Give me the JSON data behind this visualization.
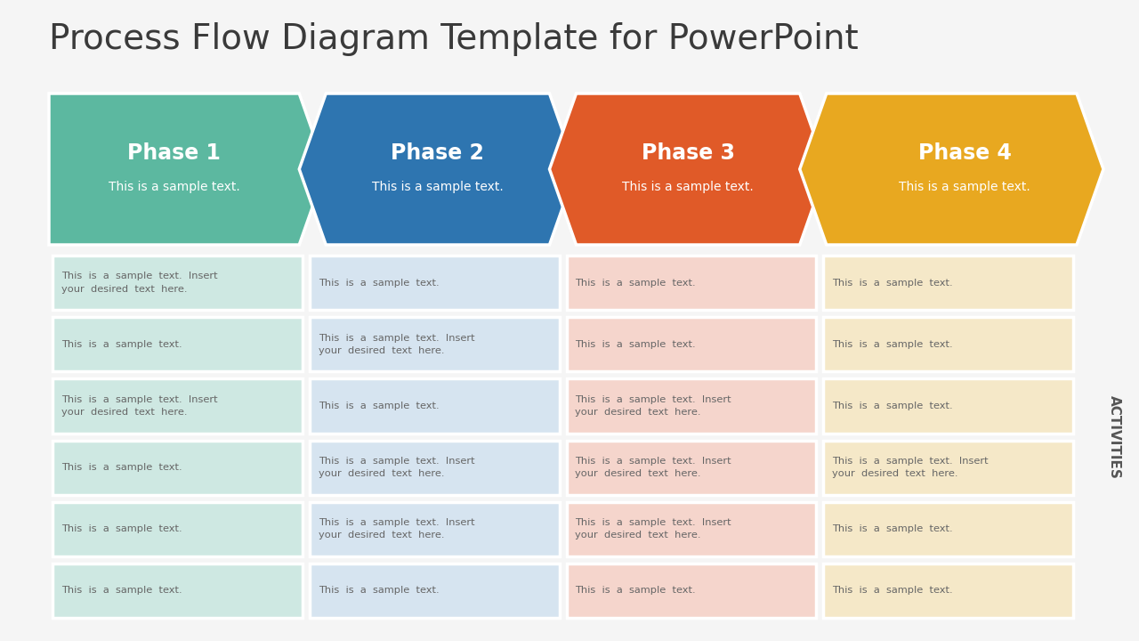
{
  "title": "Process Flow Diagram Template for PowerPoint",
  "title_fontsize": 28,
  "title_color": "#3a3a3a",
  "background_color": "#f5f5f5",
  "phases": [
    {
      "label": "Phase 1",
      "sub": "This is a sample text.",
      "color": "#5cb8a0",
      "text_bg": "#cee8e2"
    },
    {
      "label": "Phase 2",
      "sub": "This is a sample text.",
      "color": "#2e75b0",
      "text_bg": "#d6e4f0"
    },
    {
      "label": "Phase 3",
      "sub": "This is a sample text.",
      "color": "#e05a28",
      "text_bg": "#f5d5cc"
    },
    {
      "label": "Phase 4",
      "sub": "This is a sample text.",
      "color": "#e8a820",
      "text_bg": "#f5e8c8"
    }
  ],
  "activities_label": "ACTIVITIES",
  "rows": [
    [
      "This  is  a  sample  text.  Insert\nyour  desired  text  here.",
      "This  is  a  sample  text.",
      "This  is  a  sample  text.",
      "This  is  a  sample  text."
    ],
    [
      "This  is  a  sample  text.",
      "This  is  a  sample  text.  Insert\nyour  desired  text  here.",
      "This  is  a  sample  text.",
      "This  is  a  sample  text."
    ],
    [
      "This  is  a  sample  text.  Insert\nyour  desired  text  here.",
      "This  is  a  sample  text.",
      "This  is  a  sample  text.  Insert\nyour  desired  text  here.",
      "This  is  a  sample  text."
    ],
    [
      "This  is  a  sample  text.",
      "This  is  a  sample  text.  Insert\nyour  desired  text  here.",
      "This  is  a  sample  text.  Insert\nyour  desired  text  here.",
      "This  is  a  sample  text.  Insert\nyour  desired  text  here."
    ],
    [
      "This  is  a  sample  text.",
      "This  is  a  sample  text.  Insert\nyour  desired  text  here.",
      "This  is  a  sample  text.  Insert\nyour  desired  text  here.",
      "This  is  a  sample  text."
    ],
    [
      "This  is  a  sample  text.",
      "This  is  a  sample  text.",
      "This  is  a  sample  text.",
      "This  is  a  sample  text."
    ]
  ]
}
